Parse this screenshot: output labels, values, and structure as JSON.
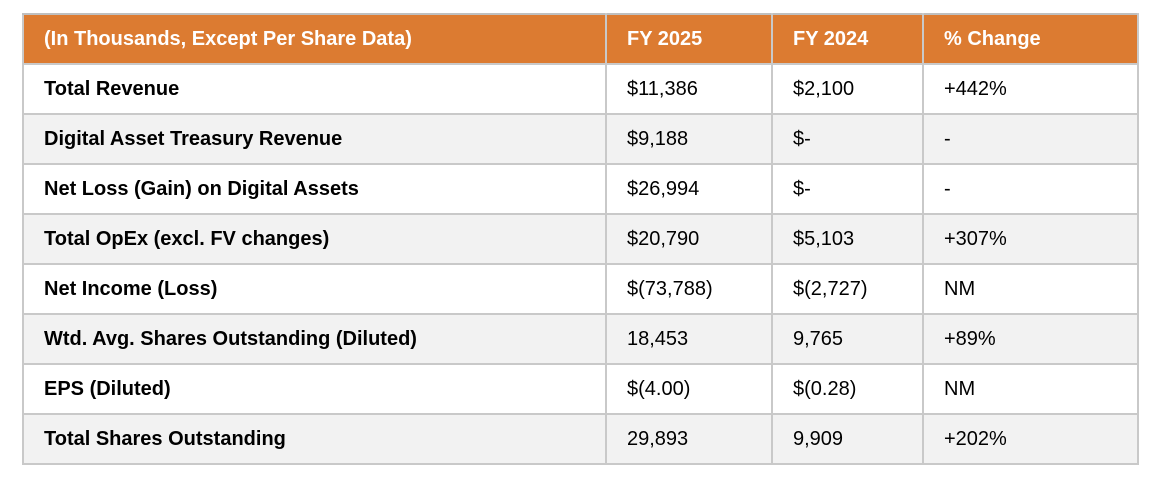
{
  "chart_data": {
    "type": "table",
    "columns": [
      "(In Thousands, Except Per Share Data)",
      "FY 2025",
      "FY 2024",
      "% Change"
    ],
    "rows": [
      {
        "label": "Total Revenue",
        "fy2025": "$11,386",
        "fy2024": "$2,100",
        "change": "+442%"
      },
      {
        "label": "Digital Asset Treasury Revenue",
        "fy2025": "$9,188",
        "fy2024": "$-",
        "change": "-"
      },
      {
        "label": "Net Loss (Gain) on Digital Assets",
        "fy2025": "$26,994",
        "fy2024": "$-",
        "change": "-"
      },
      {
        "label": "Total OpEx (excl. FV changes)",
        "fy2025": "$20,790",
        "fy2024": "$5,103",
        "change": "+307%"
      },
      {
        "label": "Net Income (Loss)",
        "fy2025": "$(73,788)",
        "fy2024": "$(2,727)",
        "change": "NM"
      },
      {
        "label": "Wtd. Avg. Shares Outstanding (Diluted)",
        "fy2025": "18,453",
        "fy2024": "9,765",
        "change": "+89%"
      },
      {
        "label": "EPS (Diluted)",
        "fy2025": "$(4.00)",
        "fy2024": "$(0.28)",
        "change": "NM"
      },
      {
        "label": "Total Shares Outstanding",
        "fy2025": "29,893",
        "fy2024": "9,909",
        "change": "+202%"
      }
    ]
  },
  "colors": {
    "header_bg": "#DC7B31",
    "header_text": "#FFFFFF",
    "stripe_bg": "#F2F2F2",
    "row_bg": "#FFFFFF",
    "border_outer": "#BFBFBF",
    "border_grid": "#C9C9C9",
    "body_text": "#000000"
  }
}
